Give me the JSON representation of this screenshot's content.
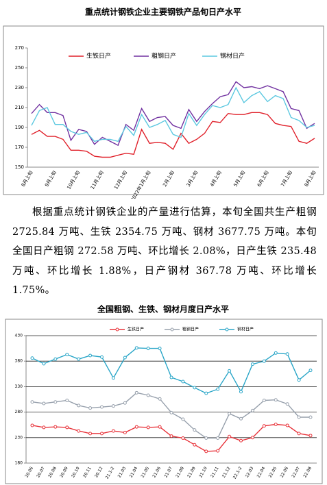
{
  "chart_data": [
    {
      "type": "line",
      "title": "重点统计钢铁企业主要钢铁产品旬日产水平",
      "categories": [
        "8月上旬",
        null,
        null,
        "9月上旬",
        null,
        null,
        "10月上旬",
        null,
        null,
        "11月上旬",
        null,
        null,
        "12月上旬",
        null,
        null,
        "2022年1月上旬",
        null,
        null,
        "2月上旬",
        null,
        null,
        "3月上旬",
        null,
        null,
        "4月上旬",
        null,
        null,
        "5月上旬",
        null,
        null,
        "6月上旬",
        null,
        null,
        "7月上旬",
        null,
        null,
        "8月上旬"
      ],
      "series": [
        {
          "name": "生铁日产",
          "color": "#e0202a",
          "values": [
            183,
            187,
            181,
            181,
            178,
            167,
            167,
            166,
            161,
            160,
            160,
            162,
            164,
            163,
            188,
            174,
            175,
            174,
            168,
            184,
            174,
            178,
            184,
            196,
            195,
            204,
            203,
            203,
            205,
            205,
            203,
            194,
            192,
            191,
            176,
            174,
            179
          ]
        },
        {
          "name": "粗钢日产",
          "color": "#7030a0",
          "values": [
            204,
            213,
            205,
            205,
            202,
            177,
            188,
            186,
            173,
            180,
            176,
            172,
            193,
            187,
            209,
            196,
            200,
            201,
            192,
            189,
            208,
            196,
            206,
            214,
            221,
            223,
            236,
            230,
            231,
            229,
            232,
            229,
            226,
            209,
            207,
            189,
            194
          ]
        },
        {
          "name": "钢材日产",
          "color": "#5bc8e0",
          "values": [
            192,
            207,
            210,
            193,
            193,
            186,
            183,
            185,
            176,
            178,
            178,
            176,
            191,
            182,
            203,
            190,
            193,
            197,
            183,
            180,
            204,
            192,
            203,
            212,
            210,
            213,
            230,
            215,
            222,
            226,
            216,
            222,
            219,
            200,
            197,
            190,
            192
          ]
        }
      ],
      "ylim": [
        150,
        270
      ],
      "yticks": [
        150,
        170,
        190,
        210,
        230,
        250,
        270
      ],
      "grid": false,
      "markers": false
    },
    {
      "type": "line",
      "title": "全国粗钢、生铁、钢材月度日产水平",
      "categories": [
        "20.06",
        "20.07",
        "20.08",
        "20.09",
        "20.10",
        "20.11",
        "20.12",
        "21.1-2",
        "21.03",
        "21.04",
        "21.05",
        "21.06",
        "21.07",
        "21.08",
        "21.09",
        "21.10",
        "21.11",
        "21.12",
        "22.1-2",
        "22.03",
        "22.04",
        "22.05",
        "22.06",
        "22.07",
        "22.08"
      ],
      "series": [
        {
          "name": "生铁日产",
          "color": "#e8333a",
          "values": [
            254,
            250,
            251,
            250,
            243,
            238,
            238,
            243,
            240,
            251,
            250,
            251,
            233,
            229,
            216,
            203,
            204,
            232,
            224,
            230,
            253,
            256,
            254,
            238,
            234
          ]
        },
        {
          "name": "粗钢日产",
          "color": "#97a0ac",
          "values": [
            300,
            297,
            300,
            303,
            293,
            288,
            290,
            292,
            298,
            318,
            313,
            306,
            279,
            266,
            245,
            229,
            229,
            277,
            267,
            283,
            303,
            304,
            296,
            270,
            270
          ]
        },
        {
          "name": "钢材日产",
          "color": "#2aa6c8",
          "values": [
            386,
            375,
            384,
            393,
            384,
            391,
            388,
            347,
            387,
            406,
            405,
            405,
            348,
            340,
            328,
            317,
            325,
            361,
            320,
            374,
            380,
            396,
            394,
            343,
            362
          ]
        }
      ],
      "ylim": [
        180,
        430
      ],
      "yticks": [
        180,
        230,
        280,
        330,
        380,
        430
      ],
      "grid": true,
      "markers": true
    }
  ],
  "paragraph": "根据重点统计钢铁企业的产量进行估算，本旬全国共生产粗钢 2725.84 万吨、生铁 2354.75 万吨、钢材 3677.75 万吨。本旬全国日产粗钢 272.58 万吨、环比增长 2.08%，日产生铁 235.48 万吨、环比增长 1.88%，日产钢材 367.78 万吨、环比增长 1.75%。"
}
